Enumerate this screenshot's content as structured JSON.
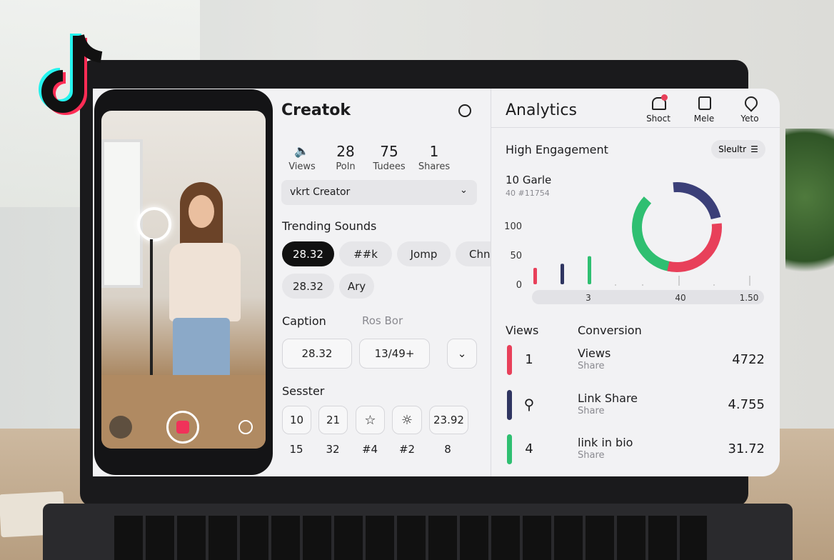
{
  "composer": {
    "app_name": "Creatok",
    "stats": [
      {
        "label": "Views"
      },
      {
        "value": "28",
        "label": "Poln"
      },
      {
        "value": "75",
        "label": "Tudees"
      },
      {
        "value": "1",
        "label": "Shares"
      }
    ],
    "account_select": "vkrt Creator",
    "trending_sounds": {
      "title": "Trending Sounds",
      "chips": [
        "28.32",
        "##k",
        "Jomp",
        "Chn",
        "28.32",
        "Ary"
      ]
    },
    "caption": {
      "title": "Caption",
      "hint": "Ros Bor",
      "inputs": [
        "28.32",
        "13/49+"
      ]
    },
    "session": {
      "title": "Sesster",
      "buttons": [
        "10",
        "21",
        "23.92"
      ],
      "counts": [
        "15",
        "32",
        "#4",
        "#2",
        "8"
      ]
    }
  },
  "analytics": {
    "title": "Analytics",
    "tabs": [
      "Shoct",
      "Mele",
      "Yeto"
    ],
    "section": "High Engagement",
    "filter": "Sleultr",
    "summary": "10 Garle",
    "summary_sub": "40 #11754",
    "chart": {
      "ylim": [
        0,
        100
      ],
      "yticks": [
        0,
        50,
        100
      ],
      "x_labels": [
        "3",
        "40",
        "1.50"
      ],
      "bars": [
        {
          "color": "#e8405a",
          "value": 28
        },
        {
          "color": "#2f3561",
          "value": 35
        },
        {
          "color": "#2fbf71",
          "value": 48
        }
      ]
    },
    "table": {
      "headers": [
        "Views",
        "Conversion"
      ],
      "rows": [
        {
          "marker": "1",
          "name": "Views",
          "sub": "Share",
          "value": "4722",
          "color": "#e8405a"
        },
        {
          "name": "Link Share",
          "sub": "Share",
          "value": "4.755",
          "color": "#2f3561"
        },
        {
          "marker": "4",
          "name": "link in bio",
          "sub": "Share",
          "value": "31.72",
          "color": "#2fbf71"
        }
      ]
    }
  }
}
